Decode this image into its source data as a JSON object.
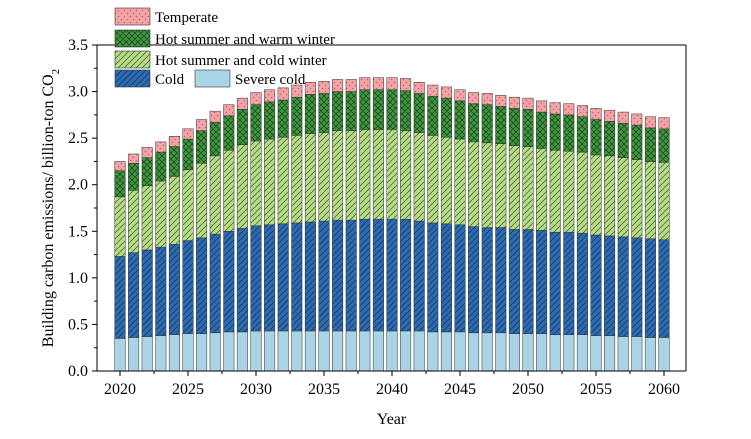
{
  "chart_data": {
    "type": "bar",
    "stacked": true,
    "xlabel": "Year",
    "ylabel": "Building carbon emissions/ billion-ton CO",
    "ylabel_subscript": "2",
    "ylim": [
      0,
      3.5
    ],
    "yticks": [
      "0.0",
      "0.5",
      "1.0",
      "1.5",
      "2.0",
      "2.5",
      "3.0",
      "3.5"
    ],
    "xticks": [
      "2020",
      "2025",
      "2030",
      "2035",
      "2040",
      "2045",
      "2050",
      "2055",
      "2060"
    ],
    "grid": false,
    "legend_position": "top-left",
    "categories": [
      2020,
      2021,
      2022,
      2023,
      2024,
      2025,
      2026,
      2027,
      2028,
      2029,
      2030,
      2031,
      2032,
      2033,
      2034,
      2035,
      2036,
      2037,
      2038,
      2039,
      2040,
      2041,
      2042,
      2043,
      2044,
      2045,
      2046,
      2047,
      2048,
      2049,
      2050,
      2051,
      2052,
      2053,
      2054,
      2055,
      2056,
      2057,
      2058,
      2059,
      2060
    ],
    "series": [
      {
        "name": "Severe cold",
        "color": "#a8d4e6",
        "pattern": "solid",
        "values": [
          0.35,
          0.36,
          0.37,
          0.38,
          0.39,
          0.4,
          0.4,
          0.41,
          0.42,
          0.42,
          0.43,
          0.43,
          0.43,
          0.43,
          0.43,
          0.43,
          0.43,
          0.43,
          0.43,
          0.43,
          0.43,
          0.43,
          0.43,
          0.42,
          0.42,
          0.42,
          0.41,
          0.41,
          0.41,
          0.4,
          0.4,
          0.4,
          0.39,
          0.39,
          0.39,
          0.38,
          0.38,
          0.37,
          0.37,
          0.36,
          0.36
        ]
      },
      {
        "name": "Cold",
        "color": "#2a6bb5",
        "pattern": "diagonal",
        "values": [
          0.88,
          0.91,
          0.93,
          0.95,
          0.97,
          1.0,
          1.03,
          1.06,
          1.08,
          1.11,
          1.13,
          1.14,
          1.15,
          1.16,
          1.17,
          1.18,
          1.19,
          1.19,
          1.2,
          1.2,
          1.2,
          1.2,
          1.18,
          1.17,
          1.16,
          1.15,
          1.14,
          1.13,
          1.13,
          1.12,
          1.12,
          1.11,
          1.1,
          1.1,
          1.09,
          1.08,
          1.07,
          1.07,
          1.06,
          1.06,
          1.05
        ]
      },
      {
        "name": "Hot summer and cold winter",
        "color": "#b4dd84",
        "pattern": "diagonal",
        "values": [
          0.64,
          0.67,
          0.69,
          0.71,
          0.73,
          0.76,
          0.8,
          0.84,
          0.87,
          0.9,
          0.91,
          0.92,
          0.93,
          0.94,
          0.95,
          0.95,
          0.96,
          0.96,
          0.96,
          0.96,
          0.96,
          0.95,
          0.95,
          0.94,
          0.93,
          0.92,
          0.91,
          0.91,
          0.9,
          0.9,
          0.89,
          0.88,
          0.88,
          0.87,
          0.87,
          0.86,
          0.86,
          0.85,
          0.84,
          0.83,
          0.83
        ]
      },
      {
        "name": "Hot summer and warm winter",
        "color": "#3a9a3a",
        "pattern": "crosshatch",
        "values": [
          0.28,
          0.29,
          0.3,
          0.31,
          0.32,
          0.33,
          0.35,
          0.36,
          0.37,
          0.38,
          0.39,
          0.4,
          0.4,
          0.41,
          0.42,
          0.42,
          0.42,
          0.42,
          0.43,
          0.43,
          0.43,
          0.43,
          0.42,
          0.42,
          0.42,
          0.41,
          0.41,
          0.41,
          0.4,
          0.4,
          0.4,
          0.39,
          0.39,
          0.39,
          0.38,
          0.38,
          0.37,
          0.37,
          0.37,
          0.36,
          0.36
        ]
      },
      {
        "name": "Temperate",
        "color": "#f4a3a6",
        "pattern": "dots",
        "values": [
          0.1,
          0.1,
          0.11,
          0.11,
          0.11,
          0.11,
          0.12,
          0.12,
          0.12,
          0.12,
          0.13,
          0.13,
          0.13,
          0.13,
          0.13,
          0.13,
          0.13,
          0.13,
          0.13,
          0.13,
          0.13,
          0.13,
          0.12,
          0.12,
          0.12,
          0.12,
          0.12,
          0.12,
          0.12,
          0.12,
          0.12,
          0.12,
          0.12,
          0.12,
          0.12,
          0.12,
          0.12,
          0.12,
          0.12,
          0.12,
          0.12
        ]
      }
    ],
    "legend_entries": [
      {
        "name": "Temperate",
        "series": 4
      },
      {
        "name": "Hot summer and warm winter",
        "series": 3
      },
      {
        "name": "Hot summer and cold winter",
        "series": 2
      },
      {
        "name": "Cold",
        "series": 1
      },
      {
        "name": "Severe cold",
        "series": 0
      }
    ]
  }
}
